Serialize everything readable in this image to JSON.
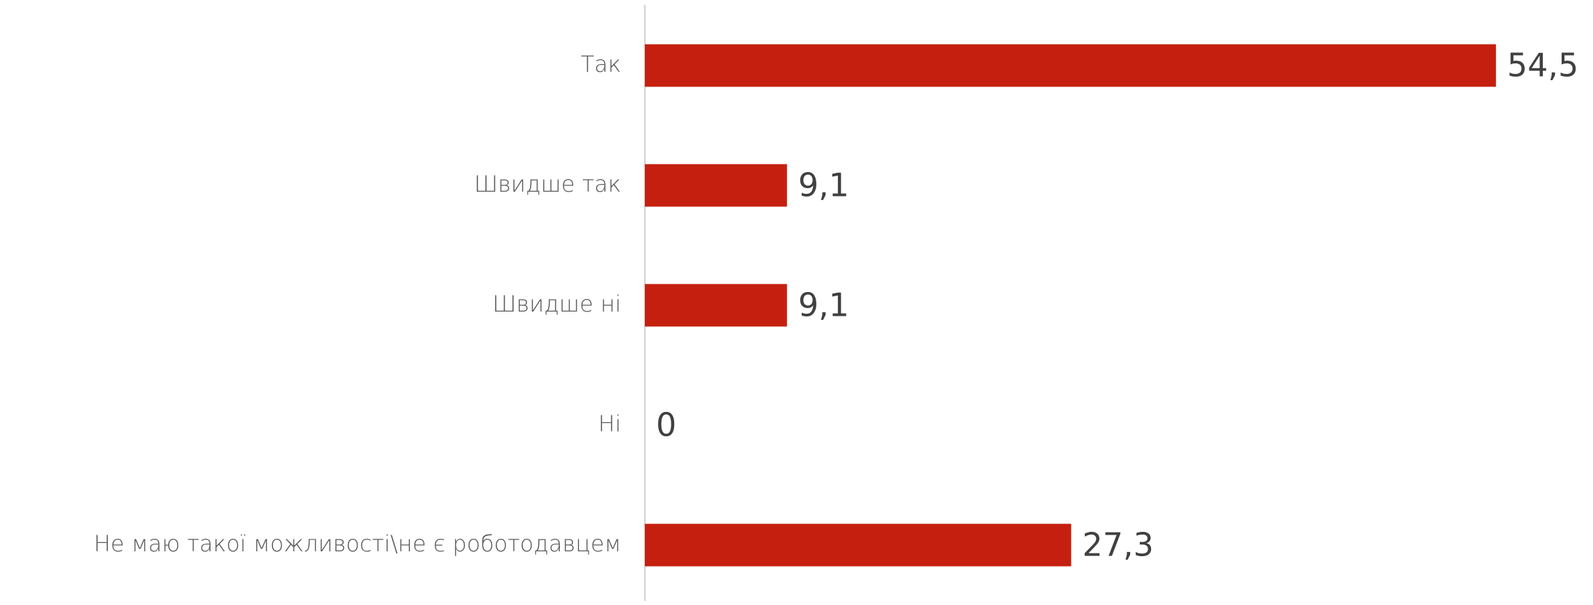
{
  "chart_data": {
    "type": "barh",
    "categories": [
      "Так",
      "Швидше так",
      "Швидше ні",
      "Ні",
      "Не маю такої можливості\\не є роботодавцем"
    ],
    "values": [
      54.5,
      9.1,
      9.1,
      0,
      27.3
    ],
    "value_labels": [
      "54,5",
      "9,1",
      "9,1",
      "0",
      "27,3"
    ],
    "color": "#c5200f",
    "xlim": [
      0,
      60
    ]
  }
}
